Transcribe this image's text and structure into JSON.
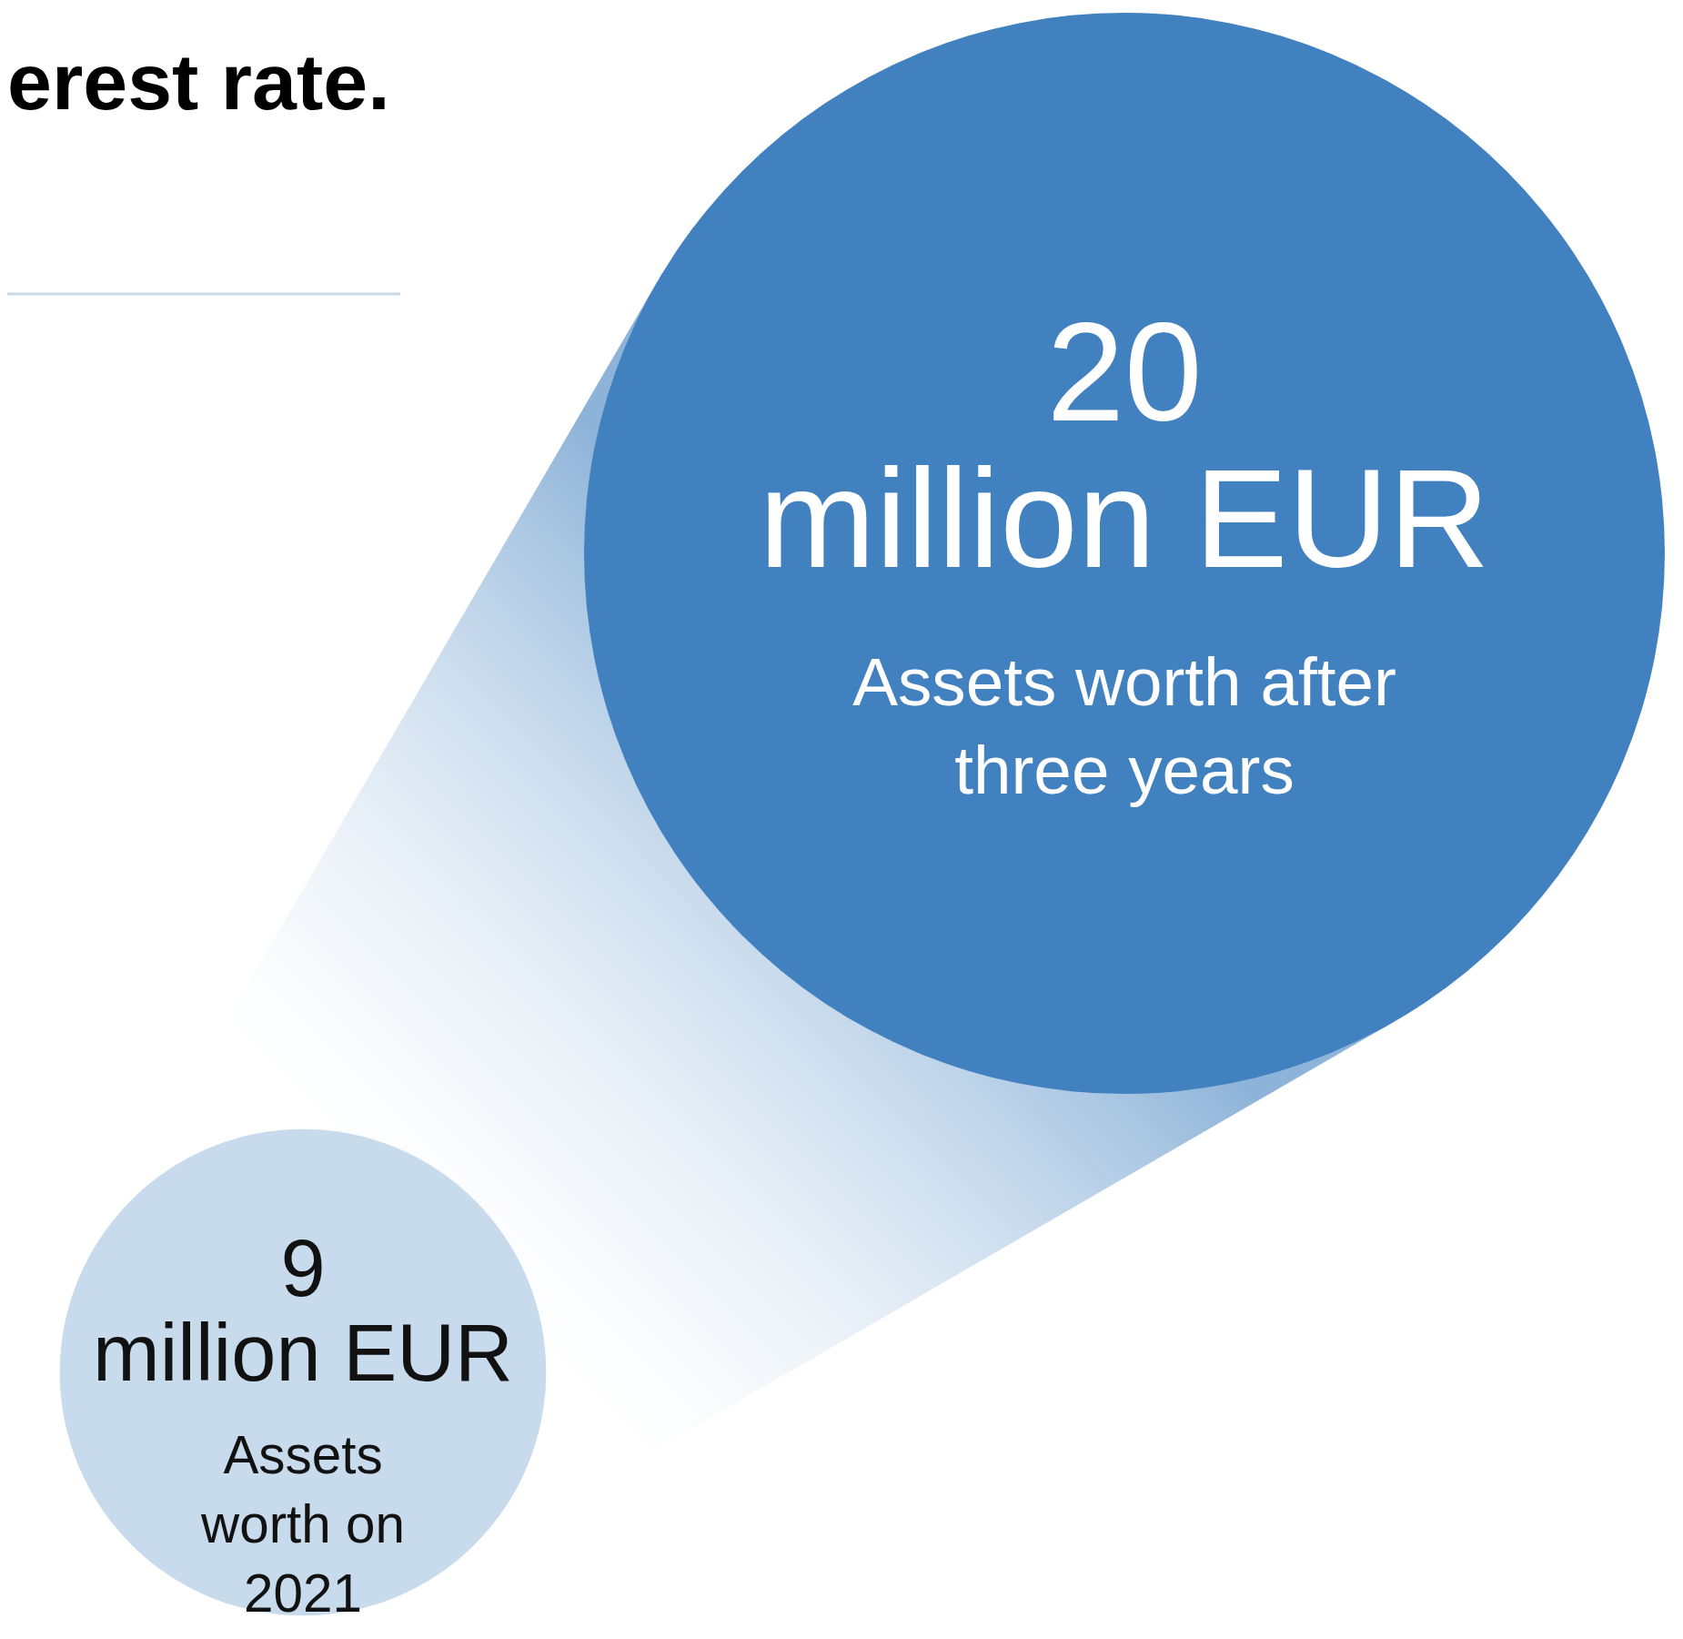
{
  "chart_data": {
    "type": "other",
    "title": "erest rate.",
    "categories": [
      "Assets worth on 2021",
      "Assets worth after three years"
    ],
    "values": [
      9,
      20
    ],
    "value_labels": [
      "9 million EUR",
      "20 million EUR"
    ],
    "colors": [
      "#c8dbec",
      "#4281bf"
    ]
  }
}
